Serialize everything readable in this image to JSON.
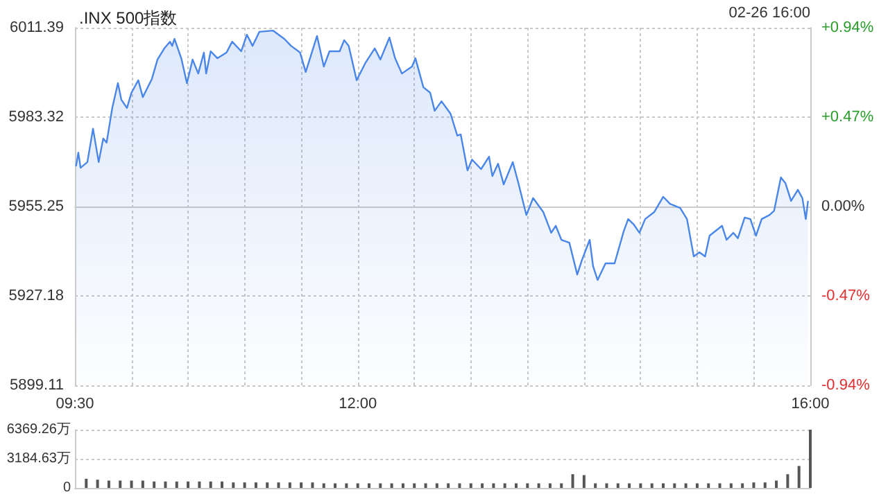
{
  "chart_data": [
    {
      "type": "area",
      "title": ".INX 500指数",
      "annotations": [
        "02-26 16:00"
      ],
      "color": "#4a86e8",
      "x": [
        9.51,
        9.53,
        9.55,
        9.61,
        9.66,
        9.71,
        9.75,
        9.78,
        9.83,
        9.88,
        9.91,
        9.96,
        10.0,
        10.06,
        10.1,
        10.18,
        10.23,
        10.29,
        10.34,
        10.36,
        10.38,
        10.44,
        10.49,
        10.54,
        10.59,
        10.64,
        10.66,
        10.7,
        10.76,
        10.84,
        10.89,
        10.97,
        11.02,
        11.07,
        11.13,
        11.25,
        11.35,
        11.41,
        11.49,
        11.54,
        11.64,
        11.7,
        11.75,
        11.84,
        11.88,
        11.92,
        11.99,
        12.07,
        12.15,
        12.2,
        12.28,
        12.33,
        12.39,
        12.48,
        12.51,
        12.58,
        12.64,
        12.68,
        12.74,
        12.82,
        12.88,
        12.91,
        12.97,
        13.01,
        13.09,
        13.16,
        13.19,
        13.24,
        13.29,
        13.37,
        13.42,
        13.49,
        13.55,
        13.64,
        13.71,
        13.75,
        13.8,
        13.87,
        13.94,
        13.98,
        14.05,
        14.08,
        14.12,
        14.19,
        14.27,
        14.35,
        14.39,
        14.44,
        14.49,
        14.54,
        14.62,
        14.7,
        14.76,
        14.85,
        14.91,
        14.97,
        15.02,
        15.07,
        15.11,
        15.22,
        15.26,
        15.32,
        15.36,
        15.42,
        15.47,
        15.52,
        15.57,
        15.64,
        15.68,
        15.74,
        15.78,
        15.83,
        15.89,
        15.93,
        15.96,
        15.98
      ],
      "values": [
        5967.9,
        5972.2,
        5967.4,
        5969.2,
        5979.7,
        5969.2,
        5976.6,
        5975.3,
        5986.2,
        5994.0,
        5988.8,
        5986.2,
        5991.0,
        5994.9,
        5989.6,
        5995.3,
        6001.4,
        6004.9,
        6007.0,
        6005.7,
        6007.9,
        6001.8,
        5994.0,
        6001.4,
        5997.0,
        6003.6,
        5997.0,
        6004.0,
        6001.8,
        6003.6,
        6007.0,
        6004.0,
        6009.2,
        6005.7,
        6010.1,
        6010.5,
        6007.9,
        6005.7,
        6003.6,
        5997.5,
        6008.8,
        5999.2,
        6004.0,
        6004.0,
        6007.5,
        6005.7,
        5994.9,
        6000.5,
        6004.9,
        6001.4,
        6008.3,
        6001.8,
        5997.0,
        5999.2,
        6001.8,
        5992.7,
        5991.0,
        5985.3,
        5988.3,
        5984.4,
        5977.5,
        5977.9,
        5966.6,
        5970.0,
        5967.0,
        5970.9,
        5964.8,
        5968.7,
        5962.2,
        5969.2,
        5962.6,
        5952.6,
        5957.9,
        5953.5,
        5947.0,
        5949.2,
        5944.8,
        5943.9,
        5933.9,
        5938.3,
        5944.8,
        5936.5,
        5932.2,
        5937.4,
        5937.4,
        5947.4,
        5951.3,
        5949.6,
        5947.0,
        5951.3,
        5953.5,
        5958.3,
        5956.1,
        5954.8,
        5951.3,
        5939.6,
        5940.9,
        5939.6,
        5946.1,
        5949.2,
        5944.8,
        5947.0,
        5945.3,
        5951.8,
        5951.3,
        5946.1,
        5951.3,
        5952.6,
        5953.9,
        5964.4,
        5962.6,
        5957.0,
        5960.5,
        5957.9,
        5951.3,
        5957.0
      ],
      "xlim": [
        9.5,
        16
      ],
      "xticks": [
        {
          "value": 9.5,
          "label": "09:30"
        },
        {
          "value": 10,
          "label": null
        },
        {
          "value": 10.5,
          "label": null
        },
        {
          "value": 11,
          "label": null
        },
        {
          "value": 11.5,
          "label": null
        },
        {
          "value": 12,
          "label": "12:00"
        },
        {
          "value": 12.5,
          "label": null
        },
        {
          "value": 13,
          "label": null
        },
        {
          "value": 13.5,
          "label": null
        },
        {
          "value": 14,
          "label": null
        },
        {
          "value": 14.5,
          "label": null
        },
        {
          "value": 15,
          "label": null
        },
        {
          "value": 15.5,
          "label": null
        },
        {
          "value": 16,
          "label": "16:00"
        }
      ],
      "ylim": [
        5899.11,
        6011.39
      ],
      "yticks": [
        5899.11,
        5927.18,
        5955.25,
        5983.32,
        6011.39
      ],
      "y2lim": [
        -0.94,
        0.94
      ],
      "y2ticks": [
        {
          "value": -0.94,
          "label": "-0.94%"
        },
        {
          "value": -0.47,
          "label": "-0.47%"
        },
        {
          "value": 0,
          "label": "0.00%"
        },
        {
          "value": 0.47,
          "label": "+0.47%"
        },
        {
          "value": 0.94,
          "label": "+0.94%"
        }
      ],
      "grid": true,
      "marker": "none",
      "line_style": "solid"
    },
    {
      "type": "bar",
      "color": "#555555",
      "tick_labels": "y",
      "grid": "y",
      "xlim": [
        9.5,
        16
      ],
      "x": [
        9.6,
        9.7,
        9.8,
        9.9,
        10.0,
        10.1,
        10.2,
        10.3,
        10.4,
        10.5,
        10.6,
        10.7,
        10.8,
        10.9,
        11.0,
        11.1,
        11.2,
        11.3,
        11.4,
        11.5,
        11.6,
        11.7,
        11.8,
        11.9,
        12.0,
        12.1,
        12.2,
        12.3,
        12.4,
        12.5,
        12.6,
        12.7,
        12.8,
        12.9,
        13.0,
        13.1,
        13.2,
        13.3,
        13.4,
        13.5,
        13.6,
        13.7,
        13.8,
        13.9,
        14.0,
        14.1,
        14.2,
        14.3,
        14.4,
        14.5,
        14.6,
        14.7,
        14.8,
        14.9,
        15.0,
        15.1,
        15.2,
        15.3,
        15.4,
        15.5,
        15.6,
        15.7,
        15.8,
        15.9,
        16.0
      ],
      "values": [
        1000,
        900,
        800,
        800,
        800,
        800,
        700,
        700,
        700,
        700,
        700,
        700,
        700,
        600,
        600,
        600,
        600,
        600,
        600,
        600,
        600,
        500,
        500,
        500,
        500,
        500,
        500,
        500,
        500,
        500,
        500,
        500,
        500,
        500,
        500,
        500,
        500,
        500,
        500,
        500,
        500,
        500,
        500,
        1500,
        1400,
        500,
        500,
        500,
        500,
        500,
        500,
        500,
        500,
        500,
        500,
        500,
        500,
        500,
        500,
        600,
        600,
        800,
        1500,
        2400,
        6369.26
      ],
      "ylim": [
        0,
        6369.26
      ],
      "yticks": [
        {
          "value": 0,
          "label": "0"
        },
        {
          "value": 3184.63,
          "label": "3184.63万"
        },
        {
          "value": 6369.26,
          "label": "6369.26万"
        }
      ]
    }
  ]
}
